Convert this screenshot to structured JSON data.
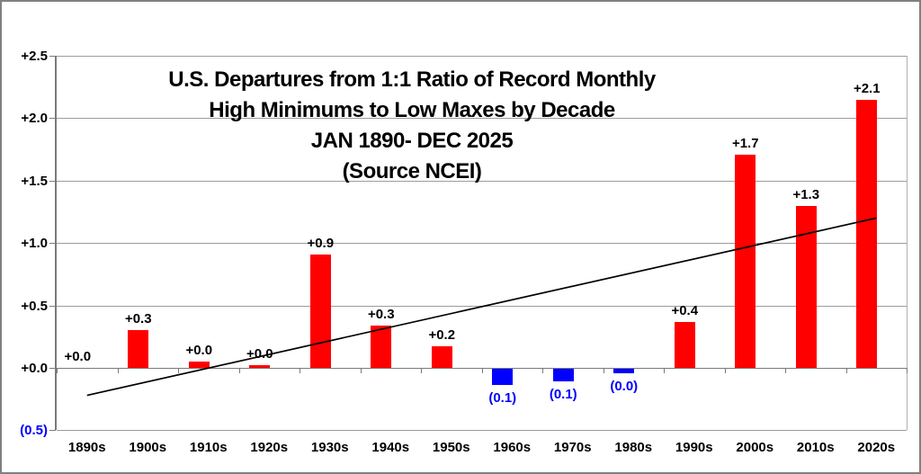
{
  "chart_data": {
    "type": "bar",
    "title_lines": [
      "U.S. Departures from 1:1 Ratio of Record Monthly",
      "High Minimums to Low Maxes by Decade",
      "JAN 1890- DEC 2025",
      "(Source NCEI)"
    ],
    "categories": [
      "1890s",
      "1900s",
      "1910s",
      "1920s",
      "1930s",
      "1940s",
      "1950s",
      "1960s",
      "1970s",
      "1980s",
      "1990s",
      "2000s",
      "2010s",
      "2020s"
    ],
    "values": [
      0.0,
      0.3,
      0.05,
      0.02,
      0.91,
      0.34,
      0.17,
      -0.14,
      -0.11,
      -0.04,
      0.37,
      1.71,
      1.3,
      2.15
    ],
    "bar_labels": [
      "+0.0",
      "+0.3",
      "+0.0",
      "+0.0",
      "+0.9",
      "+0.3",
      "+0.2",
      "(0.1)",
      "(0.1)",
      "(0.0)",
      "+0.4",
      "+1.7",
      "+1.3",
      "+2.1"
    ],
    "y_axis": {
      "min": -0.5,
      "max": 2.5,
      "step": 0.5,
      "tick_labels": [
        "+2.5",
        "+2.0",
        "+1.5",
        "+1.0",
        "+0.5",
        "+0.0",
        "(0.5)"
      ],
      "tick_values": [
        2.5,
        2.0,
        1.5,
        1.0,
        0.5,
        0.0,
        -0.5
      ]
    },
    "trendline": {
      "start_value": -0.22,
      "end_value": 1.2
    },
    "grid": true,
    "legend": "none",
    "colors": {
      "positive_bar": "#ff0000",
      "negative_bar": "#0000ff",
      "positive_label": "#000000",
      "negative_label": "#0000ff",
      "negative_axis_label": "#0000ff",
      "gridline": "#9c9c9c",
      "axis": "#7a7a7a",
      "trendline": "#000000",
      "title": "#000000",
      "background": "#ffffff",
      "frame_border": "#808080"
    }
  }
}
